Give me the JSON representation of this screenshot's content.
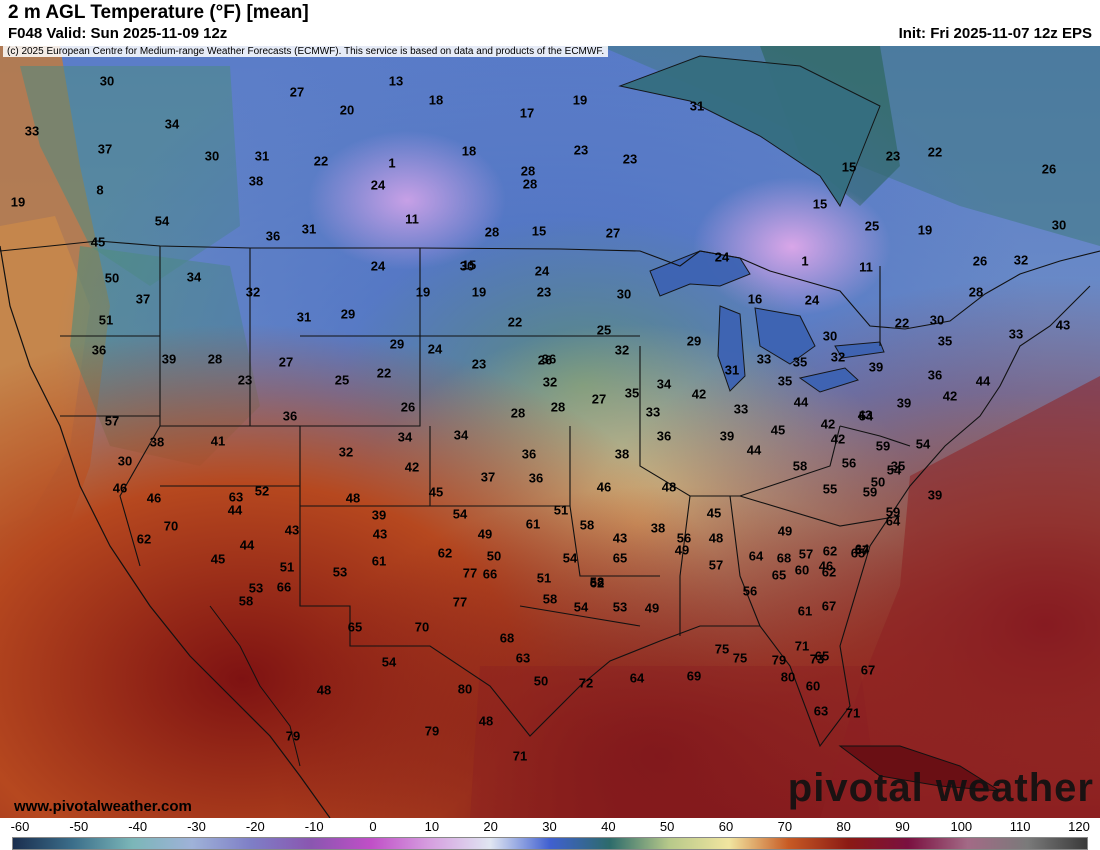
{
  "header": {
    "title": "2 m AGL Temperature (°F) [mean]",
    "valid": "F048 Valid: Sun 2025-11-09 12z",
    "init": "Init: Fri 2025-11-07 12z EPS"
  },
  "map": {
    "copyright": "(c) 2025 European Centre for Medium-range Weather Forecasts (ECMWF). This service is based on data and products of the ECMWF.",
    "labels": [
      "30",
      "27",
      "13",
      "18",
      "19",
      "34",
      "20",
      "17",
      "31",
      "33",
      "37",
      "30",
      "31",
      "22",
      "1",
      "18",
      "28",
      "23",
      "23",
      "22",
      "26",
      "28",
      "24",
      "11",
      "8",
      "38",
      "28",
      "15",
      "15",
      "23",
      "19",
      "54",
      "36",
      "31",
      "30",
      "15",
      "27",
      "25",
      "1",
      "11",
      "19",
      "30",
      "45",
      "24",
      "15",
      "24",
      "22",
      "24",
      "26",
      "32",
      "50",
      "34",
      "37",
      "32",
      "19",
      "19",
      "23",
      "30",
      "16",
      "24",
      "28",
      "30",
      "51",
      "29",
      "31",
      "22",
      "25",
      "29",
      "30",
      "35",
      "33",
      "43",
      "36",
      "39",
      "28",
      "27",
      "29",
      "24",
      "32",
      "34",
      "36",
      "42",
      "35",
      "23",
      "25",
      "22",
      "23",
      "26",
      "32",
      "31",
      "33",
      "35",
      "32",
      "39",
      "36",
      "44",
      "57",
      "36",
      "26",
      "28",
      "27",
      "28",
      "33",
      "35",
      "33",
      "44",
      "43",
      "42",
      "39",
      "42",
      "41",
      "38",
      "32",
      "34",
      "34",
      "36",
      "38",
      "36",
      "39",
      "44",
      "45",
      "42",
      "54",
      "59",
      "54",
      "30",
      "37",
      "36",
      "42",
      "43",
      "46",
      "48",
      "45",
      "58",
      "56",
      "55",
      "50",
      "35",
      "39",
      "44",
      "46",
      "46",
      "52",
      "48",
      "45",
      "54",
      "61",
      "51",
      "58",
      "43",
      "38",
      "49",
      "48",
      "49",
      "59",
      "54",
      "59",
      "70",
      "63",
      "43",
      "39",
      "49",
      "50",
      "51",
      "54",
      "58",
      "62",
      "65",
      "57",
      "65",
      "62",
      "45",
      "44",
      "51",
      "53",
      "61",
      "62",
      "66",
      "58",
      "54",
      "53",
      "49",
      "56",
      "57",
      "56",
      "65",
      "64",
      "68",
      "62",
      "64",
      "46",
      "61",
      "62",
      "60",
      "67",
      "64",
      "66",
      "58",
      "53",
      "65",
      "70",
      "77",
      "77",
      "68",
      "63",
      "72",
      "64",
      "69",
      "80",
      "71",
      "73",
      "65",
      "67",
      "60",
      "63",
      "67",
      "71",
      "79",
      "75",
      "75",
      "48",
      "54",
      "79",
      "80",
      "48",
      "71",
      "50",
      "79"
    ]
  },
  "footer": {
    "website": "www.pivotalweather.com",
    "brand": "pivotal weather"
  },
  "colorbar": {
    "ticks": [
      "-60",
      "-50",
      "-40",
      "-30",
      "-20",
      "-10",
      "0",
      "10",
      "20",
      "30",
      "40",
      "50",
      "60",
      "70",
      "80",
      "90",
      "100",
      "110",
      "120"
    ],
    "colors": [
      "#1a2e4f",
      "#3b6e8a",
      "#7bb6b8",
      "#9fb2d8",
      "#7e7ec6",
      "#8a56b0",
      "#c04fc7",
      "#d6a0e0",
      "#e0e6f2",
      "#4060d0",
      "#2d6b6b",
      "#b7c98a",
      "#f1e5a0",
      "#c75a24",
      "#8b1a14",
      "#7a1040",
      "#a36a86",
      "#7a7a7a",
      "#3a3a3a"
    ]
  }
}
